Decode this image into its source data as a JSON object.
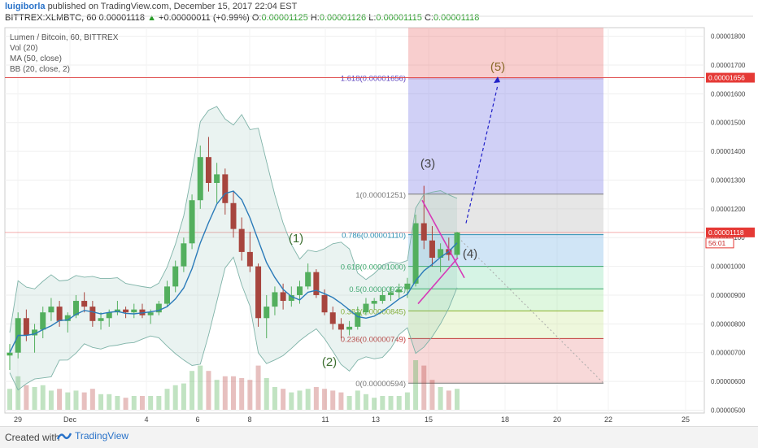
{
  "header": {
    "author": "luigiborla",
    "published": "published on TradingView.com, December 15, 2017 22:04 EST",
    "symbol": "BITTREX:XLMBTC, 60",
    "last": "0.00001118",
    "change": "+0.00000011 (+0.99%)",
    "open_label": "O:",
    "open": "0.00001125",
    "high_label": "H:",
    "high": "0.00001126",
    "low_label": "L:",
    "low": "0.00001115",
    "close_label": "C:",
    "close": "0.00001118"
  },
  "legend": {
    "title": "Lumen / Bitcoin, 60, BITTREX",
    "vol": "Vol (20)",
    "ma": "MA (50, close)",
    "bb": "BB (20, close, 2)"
  },
  "footer": {
    "created_with": "Created with",
    "brand": "TradingView"
  },
  "colors": {
    "up": "#4caf50",
    "down": "#b0302a",
    "ma": "#2b7bb9",
    "bb": "#7fb3a8",
    "fib_line": "#a8a8a8",
    "pattern": "#d63ab8",
    "projection": "#2020c8"
  },
  "chart_data": {
    "type": "candlestick",
    "title": "Lumen / Bitcoin, 60, BITTREX",
    "y_axis_ticks": [
      "0.00001800",
      "0.00001700",
      "0.00001600",
      "0.00001500",
      "0.00001400",
      "0.00001300",
      "0.00001200",
      "0.00001100",
      "0.00001000",
      "0.00000900",
      "0.00000800",
      "0.00000700",
      "0.00000600",
      "0.00000500"
    ],
    "x_axis_ticks": [
      "29",
      "Dec",
      "4",
      "6",
      "8",
      "11",
      "13",
      "15",
      "18",
      "20",
      "22",
      "25"
    ],
    "ylim": [
      4.9e-06,
      1.83e-05
    ],
    "last_price_label": "0.00001118",
    "countdown_label": "56:01",
    "target_price_label": "0.00001656",
    "candles_approx": [
      [
        6.9,
        7.3,
        6.4,
        7.0
      ],
      [
        7.0,
        8.4,
        6.8,
        8.2
      ],
      [
        8.2,
        8.5,
        7.4,
        7.6
      ],
      [
        7.6,
        8.0,
        7.0,
        7.8
      ],
      [
        7.8,
        8.6,
        7.5,
        8.4
      ],
      [
        8.4,
        8.9,
        8.1,
        8.6
      ],
      [
        8.6,
        8.8,
        7.9,
        8.1
      ],
      [
        8.1,
        8.4,
        7.7,
        8.3
      ],
      [
        8.3,
        9.0,
        8.2,
        8.8
      ],
      [
        8.8,
        9.1,
        8.4,
        8.6
      ],
      [
        8.6,
        8.8,
        7.9,
        8.1
      ],
      [
        8.1,
        8.4,
        7.8,
        8.2
      ],
      [
        8.2,
        8.5,
        7.9,
        8.4
      ],
      [
        8.4,
        8.8,
        8.3,
        8.5
      ],
      [
        8.5,
        8.6,
        8.2,
        8.4
      ],
      [
        8.4,
        8.7,
        8.2,
        8.5
      ],
      [
        8.5,
        8.7,
        8.2,
        8.3
      ],
      [
        8.3,
        8.5,
        8.0,
        8.4
      ],
      [
        8.4,
        8.8,
        8.3,
        8.7
      ],
      [
        8.7,
        9.5,
        8.6,
        9.3
      ],
      [
        9.3,
        10.2,
        9.1,
        10.0
      ],
      [
        10.0,
        11.0,
        9.8,
        10.8
      ],
      [
        10.8,
        12.5,
        10.6,
        12.3
      ],
      [
        12.3,
        14.2,
        12.0,
        13.8
      ],
      [
        13.8,
        14.5,
        12.6,
        12.9
      ],
      [
        12.9,
        13.6,
        12.2,
        13.2
      ],
      [
        13.2,
        13.4,
        11.8,
        12.2
      ],
      [
        12.2,
        12.6,
        11.0,
        11.3
      ],
      [
        11.3,
        11.7,
        10.2,
        10.5
      ],
      [
        10.5,
        11.2,
        9.8,
        10.0
      ],
      [
        10.0,
        10.1,
        7.9,
        8.2
      ],
      [
        8.2,
        9.0,
        7.5,
        8.6
      ],
      [
        8.6,
        9.3,
        8.3,
        9.1
      ],
      [
        9.1,
        9.4,
        8.5,
        8.8
      ],
      [
        8.8,
        9.3,
        8.6,
        9.0
      ],
      [
        9.0,
        9.5,
        8.7,
        9.3
      ],
      [
        9.3,
        10.1,
        9.2,
        9.8
      ],
      [
        9.8,
        9.9,
        8.9,
        9.0
      ],
      [
        9.0,
        9.2,
        8.3,
        8.4
      ],
      [
        8.4,
        8.6,
        7.8,
        8.0
      ],
      [
        8.0,
        8.2,
        7.5,
        7.8
      ],
      [
        7.8,
        8.1,
        7.6,
        7.9
      ],
      [
        7.9,
        8.6,
        7.8,
        8.4
      ],
      [
        8.4,
        8.9,
        8.3,
        8.7
      ],
      [
        8.7,
        8.9,
        8.5,
        8.8
      ],
      [
        8.8,
        9.2,
        8.7,
        9.0
      ],
      [
        9.0,
        9.3,
        8.8,
        9.1
      ],
      [
        9.1,
        9.4,
        8.9,
        9.2
      ],
      [
        9.2,
        9.6,
        8.9,
        9.4
      ],
      [
        9.4,
        11.8,
        9.3,
        11.5
      ],
      [
        11.5,
        12.8,
        10.6,
        10.9
      ],
      [
        10.9,
        11.4,
        10.0,
        10.3
      ],
      [
        10.3,
        10.8,
        9.8,
        10.6
      ],
      [
        10.6,
        11.0,
        10.2,
        10.4
      ],
      [
        10.4,
        11.2,
        10.3,
        11.18
      ]
    ],
    "fibonacci_retracement": [
      {
        "label": "1.618(0.00001656)",
        "level": 1.656e-05
      },
      {
        "label": "1(0.00001251)",
        "level": 1.251e-05
      },
      {
        "label": "0.786(0.00001110)",
        "level": 1.11e-05
      },
      {
        "label": "0.618(0.00001000)",
        "level": 1e-05
      },
      {
        "label": "0.5(0.00000922)",
        "level": 9.22e-06
      },
      {
        "label": "0.382(0.00000845)",
        "level": 8.45e-06
      },
      {
        "label": "0.236(0.00000749)",
        "level": 7.49e-06
      },
      {
        "label": "0(0.00000594)",
        "level": 5.94e-06
      }
    ],
    "annotations": [
      "(1)",
      "(2)",
      "(3)",
      "(4)",
      "(5)"
    ],
    "overlays": [
      "Vol (20)",
      "MA (50, close)",
      "BB (20, close, 2)"
    ],
    "grid": true
  }
}
